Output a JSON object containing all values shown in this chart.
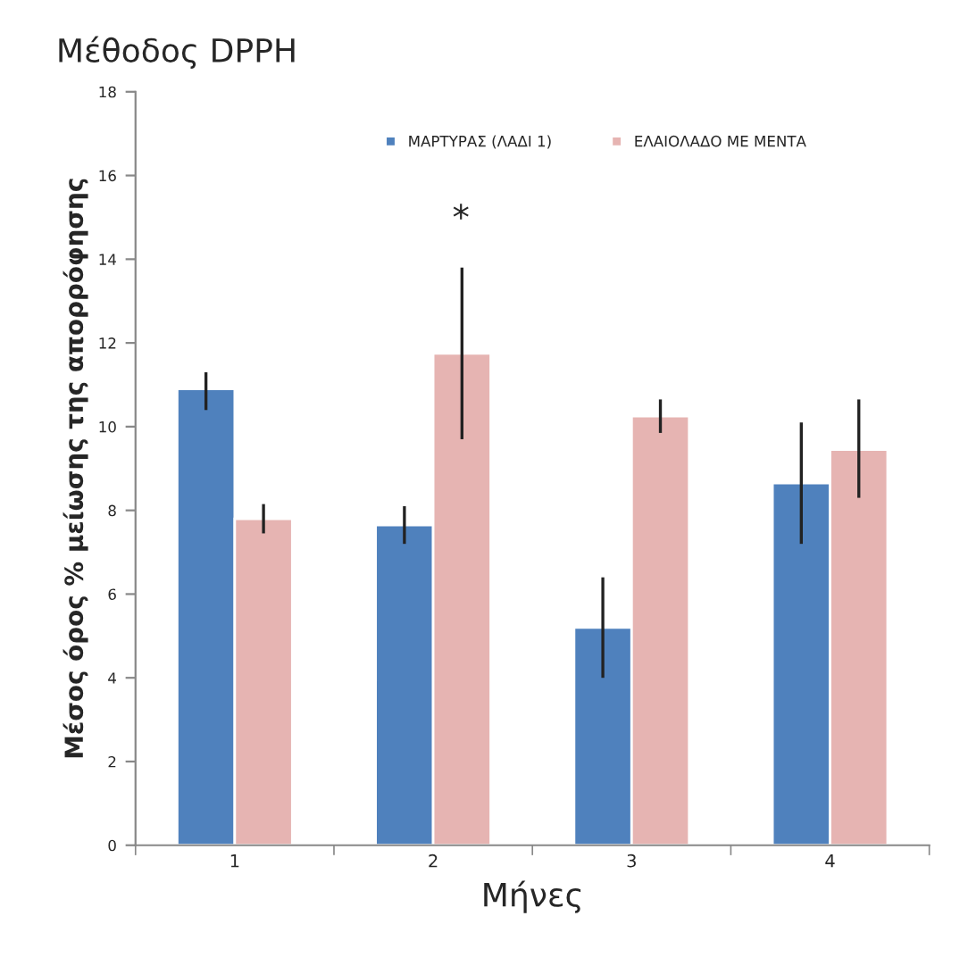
{
  "chart_data": {
    "type": "bar",
    "title": "Μέθοδος DPPH",
    "xlabel": "Μήνες",
    "ylabel": "Μέσος όρος % μείωσης της απορρόφησης",
    "categories": [
      "1",
      "2",
      "3",
      "4"
    ],
    "series": [
      {
        "name": "ΜΑΡΤΥΡΑΣ (ΛΑΔΙ 1)",
        "color": "#4f81bd",
        "values": [
          10.9,
          7.65,
          5.2,
          8.65
        ],
        "errors": [
          [
            10.4,
            11.3
          ],
          [
            7.2,
            8.1
          ],
          [
            4.0,
            6.4
          ],
          [
            7.2,
            10.1
          ]
        ]
      },
      {
        "name": "ΕΛΑΙΟΛΑΔΟ ΜΕ ΜΕΝΤΑ",
        "color": "#e6b4b2",
        "values": [
          7.8,
          11.75,
          10.25,
          9.45
        ],
        "errors": [
          [
            7.45,
            8.15
          ],
          [
            9.7,
            13.8
          ],
          [
            9.85,
            10.65
          ],
          [
            8.3,
            10.65
          ]
        ]
      }
    ],
    "ylim": [
      0,
      18
    ],
    "yticks": [
      0,
      2,
      4,
      6,
      8,
      10,
      12,
      14,
      16,
      18
    ],
    "grid": false,
    "legend": "top",
    "annotations": [
      "*"
    ]
  }
}
